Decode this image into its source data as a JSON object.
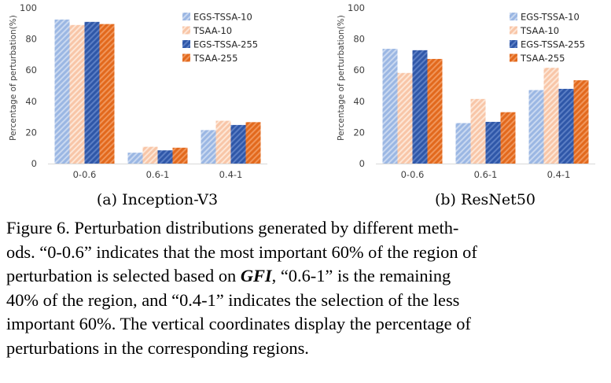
{
  "chart_data": [
    {
      "type": "bar",
      "title": "(a) Inception-V3",
      "ylabel": "Percentage of perturbation(%)",
      "xlabel": "",
      "ylim": [
        0,
        100
      ],
      "yticks": [
        0,
        20,
        40,
        60,
        80,
        100
      ],
      "categories": [
        "0-0.6",
        "0.6-1",
        "0.4-1"
      ],
      "legend_position": "top-right",
      "series": [
        {
          "name": "EGS-TSSA-10",
          "values": [
            92.5,
            7,
            21.5
          ],
          "color": "#9bb7e3"
        },
        {
          "name": "TSAA-10",
          "values": [
            89,
            10.8,
            27.5
          ],
          "color": "#f8c6a8"
        },
        {
          "name": "EGS-TSSA-255",
          "values": [
            91,
            8.5,
            24.8
          ],
          "color": "#2f57a8"
        },
        {
          "name": "TSAA-255",
          "values": [
            89.6,
            10.2,
            26.6
          ],
          "color": "#e2691d"
        }
      ]
    },
    {
      "type": "bar",
      "title": "(b) ResNet50",
      "ylabel": "Percentage of perturbation(%)",
      "xlabel": "",
      "ylim": [
        0,
        100
      ],
      "yticks": [
        0,
        20,
        40,
        60,
        80,
        100
      ],
      "categories": [
        "0-0.6",
        "0.6-1",
        "0.4-1"
      ],
      "legend_position": "top-right",
      "series": [
        {
          "name": "EGS-TSSA-10",
          "values": [
            73.7,
            26,
            47.2
          ],
          "color": "#9bb7e3"
        },
        {
          "name": "TSAA-10",
          "values": [
            58.2,
            41.5,
            61.5
          ],
          "color": "#f8c6a8"
        },
        {
          "name": "EGS-TSSA-255",
          "values": [
            72.8,
            26.8,
            48
          ],
          "color": "#2f57a8"
        },
        {
          "name": "TSAA-255",
          "values": [
            67.2,
            33,
            53.5
          ],
          "color": "#e2691d"
        }
      ]
    }
  ],
  "caption": {
    "line1": "Figure 6.  Perturbation distributions generated by different meth-",
    "line2": "ods. “0-0.6” indicates that the most important 60% of the region of",
    "line3_pre": "perturbation is selected based on ",
    "line3_gfi": "GFI",
    "line3_post": ", “0.6-1” is the remaining",
    "line4": "40% of the region, and “0.4-1” indicates the selection of the less",
    "line5": "important 60%. The vertical coordinates display the percentage of",
    "line6": "perturbations in the corresponding regions."
  }
}
